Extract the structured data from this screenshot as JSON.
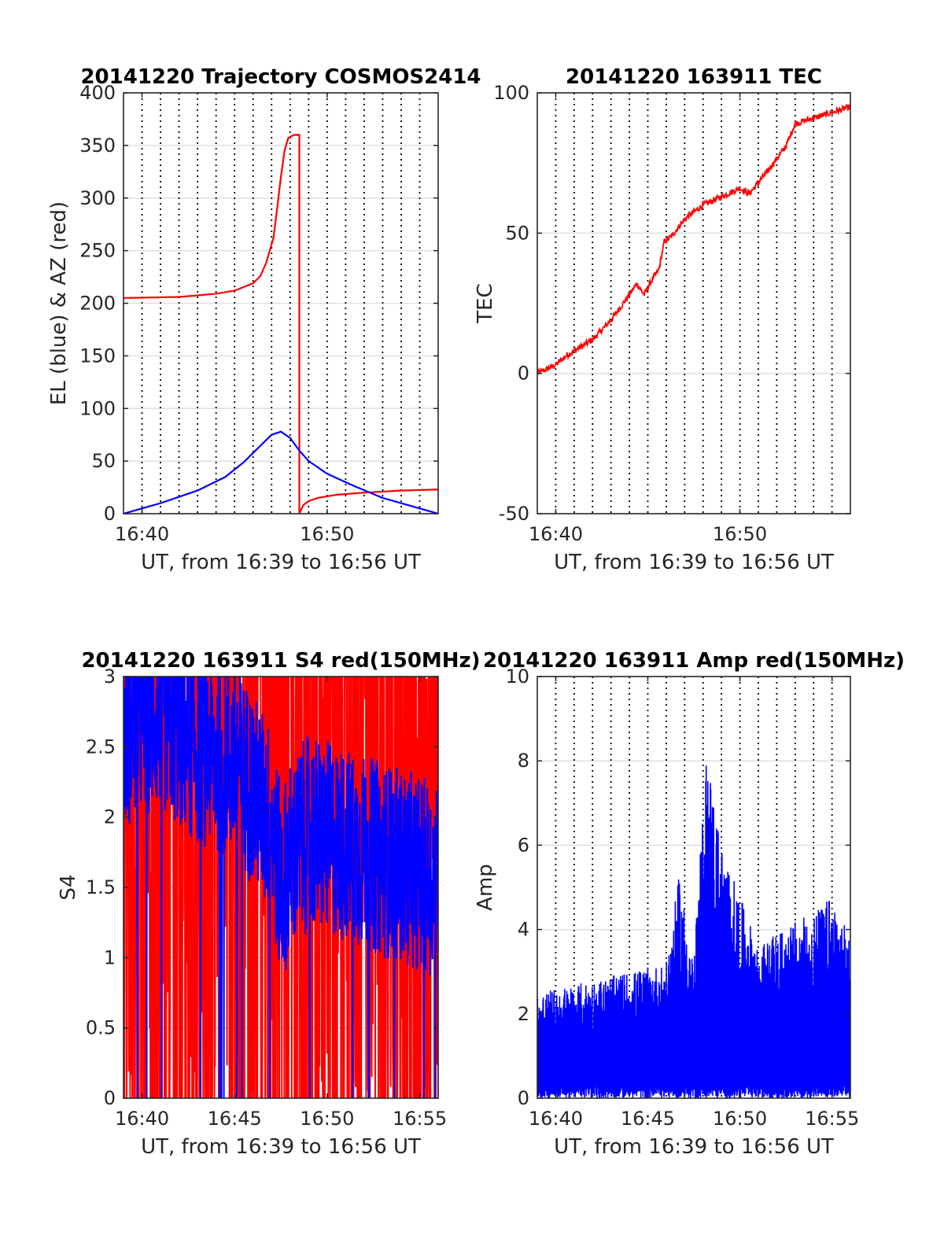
{
  "chart_data": [
    {
      "id": "trajectory",
      "type": "line",
      "title": "20141220 Trajectory COSMOS2414",
      "xlabel": "UT, from 16:39 to 16:56 UT",
      "ylabel": "EL (blue) & AZ (red)",
      "xlim": [
        16.65,
        16.9333
      ],
      "ylim": [
        0,
        400
      ],
      "yticks": [
        0,
        50,
        100,
        150,
        200,
        250,
        300,
        350,
        400
      ],
      "xticks": [
        {
          "v": 16.6667,
          "label": "16:40"
        },
        {
          "v": 16.8333,
          "label": "16:50"
        }
      ],
      "vgrid_minutes": [
        40,
        41,
        42,
        43,
        44,
        45,
        46,
        47,
        48,
        49,
        50,
        51,
        52,
        53,
        54,
        55
      ],
      "series": [
        {
          "color": "#ff0000",
          "x": [
            16.65,
            16.7,
            16.7333,
            16.75,
            16.7667,
            16.7733,
            16.7783,
            16.785,
            16.7883,
            16.7917,
            16.795,
            16.7983,
            16.8033,
            16.8083,
            16.8083,
            16.8117,
            16.8167,
            16.825,
            16.8417,
            16.8667,
            16.9,
            16.9333
          ],
          "y": [
            205,
            206,
            209,
            212,
            219,
            226,
            238,
            262,
            290,
            320,
            345,
            357,
            360,
            360,
            0,
            8,
            12,
            15,
            18,
            20,
            22,
            23
          ]
        },
        {
          "color": "#0000ff",
          "x": [
            16.65,
            16.6833,
            16.7167,
            16.7417,
            16.7583,
            16.7717,
            16.7833,
            16.7917,
            16.8,
            16.8083,
            16.8167,
            16.8333,
            16.8583,
            16.8833,
            16.9167,
            16.9333
          ],
          "y": [
            0,
            10,
            22,
            35,
            49,
            63,
            75,
            78,
            72,
            60,
            50,
            38,
            26,
            15,
            5,
            0
          ]
        }
      ]
    },
    {
      "id": "tec",
      "type": "line",
      "title": "20141220 163911 TEC",
      "xlabel": "UT, from 16:39 to 16:56 UT",
      "ylabel": "TEC",
      "xlim": [
        16.65,
        16.9333
      ],
      "ylim": [
        -50,
        100
      ],
      "yticks": [
        -50,
        0,
        50,
        100
      ],
      "xticks": [
        {
          "v": 16.6667,
          "label": "16:40"
        },
        {
          "v": 16.8333,
          "label": "16:50"
        }
      ],
      "vgrid_minutes": [
        40,
        41,
        42,
        43,
        44,
        45,
        46,
        47,
        48,
        49,
        50,
        51,
        52,
        53,
        54,
        55
      ],
      "series": [
        {
          "color": "#ff0000",
          "x": [
            16.65,
            16.6667,
            16.675,
            16.6833,
            16.7,
            16.7167,
            16.7333,
            16.74,
            16.7467,
            16.7533,
            16.76,
            16.765,
            16.7717,
            16.7833,
            16.8,
            16.8167,
            16.8333,
            16.8417,
            16.8583,
            16.875,
            16.8833,
            16.9,
            16.9167,
            16.9333
          ],
          "y": [
            0,
            3,
            6,
            8,
            12,
            19,
            28,
            32,
            28,
            33,
            37,
            47,
            49,
            55,
            60,
            63,
            66,
            64,
            72,
            81,
            89,
            91,
            93,
            95
          ]
        }
      ]
    },
    {
      "id": "s4",
      "type": "line",
      "title": "20141220 163911 S4 red(150MHz)",
      "xlabel": "UT, from 16:39 to 16:56 UT",
      "ylabel": "S4",
      "xlim": [
        16.65,
        16.9333
      ],
      "ylim": [
        0,
        3
      ],
      "yticks": [
        0,
        0.5,
        1,
        1.5,
        2,
        2.5,
        3
      ],
      "xticks": [
        {
          "v": 16.6667,
          "label": "16:40"
        },
        {
          "v": 16.75,
          "label": "16:45"
        },
        {
          "v": 16.8333,
          "label": "16:50"
        },
        {
          "v": 16.9167,
          "label": "16:55"
        }
      ],
      "vgrid_minutes": [],
      "series": [
        {
          "color": "#ff0000",
          "note_shape": "spikes between 0 and 3",
          "x": [
            16.65,
            16.7,
            16.75,
            16.8,
            16.85,
            16.9,
            16.9333
          ],
          "y": [
            3,
            3,
            3,
            3,
            3,
            3,
            3
          ]
        },
        {
          "color": "#0000ff",
          "x": [
            16.65,
            16.6667,
            16.6833,
            16.7,
            16.7167,
            16.7333,
            16.75,
            16.7667,
            16.7833,
            16.7917,
            16.8,
            16.8167,
            16.8333,
            16.85,
            16.8667,
            16.8833,
            16.9,
            16.9167,
            16.9333
          ],
          "y": [
            2.6,
            2.7,
            2.75,
            2.6,
            2.5,
            2.45,
            2.4,
            2.2,
            1.95,
            1.5,
            1.7,
            1.9,
            1.85,
            1.8,
            1.75,
            1.7,
            1.65,
            1.6,
            1.55
          ]
        }
      ]
    },
    {
      "id": "amp",
      "type": "line",
      "title": "20141220 163911 Amp red(150MHz)",
      "xlabel": "UT, from 16:39 to 16:56 UT",
      "ylabel": "Amp",
      "xlim": [
        16.65,
        16.9333
      ],
      "ylim": [
        0,
        10
      ],
      "yticks": [
        0,
        2,
        4,
        6,
        8,
        10
      ],
      "xticks": [
        {
          "v": 16.6667,
          "label": "16:40"
        },
        {
          "v": 16.75,
          "label": "16:45"
        },
        {
          "v": 16.8333,
          "label": "16:50"
        },
        {
          "v": 16.9167,
          "label": "16:55"
        }
      ],
      "vgrid_minutes": [
        40,
        41,
        42,
        43,
        44,
        45,
        46,
        47,
        48,
        49,
        50,
        51,
        52,
        53,
        54,
        55
      ],
      "series": [
        {
          "color": "#0000ff",
          "x": [
            16.65,
            16.6667,
            16.7,
            16.7333,
            16.7667,
            16.7783,
            16.7917,
            16.8033,
            16.8167,
            16.85,
            16.8833,
            16.9,
            16.9167,
            16.9333
          ],
          "y": [
            2.5,
            2.6,
            2.8,
            3.0,
            3.2,
            5.3,
            3.3,
            8.3,
            6.0,
            3.6,
            4.2,
            4.4,
            4.8,
            3.8
          ]
        }
      ]
    }
  ]
}
